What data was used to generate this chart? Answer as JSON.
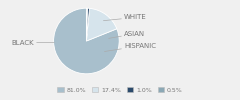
{
  "labels": [
    "BLACK",
    "WHITE",
    "ASIAN",
    "HISPANIC"
  ],
  "values": [
    81.0,
    17.4,
    1.0,
    0.5
  ],
  "colors": [
    "#a8bfcc",
    "#d6e4ec",
    "#2b4a6b",
    "#8ba8b5"
  ],
  "legend_labels": [
    "81.0%",
    "17.4%",
    "1.0%",
    "0.5%"
  ],
  "legend_colors": [
    "#a8bfcc",
    "#d6e4ec",
    "#2b4a6b",
    "#8ba8b5"
  ],
  "startangle": 90,
  "bg_color": "#f0f0f0",
  "label_color": "#777777",
  "line_color": "#aaaaaa",
  "fontsize": 5.0
}
